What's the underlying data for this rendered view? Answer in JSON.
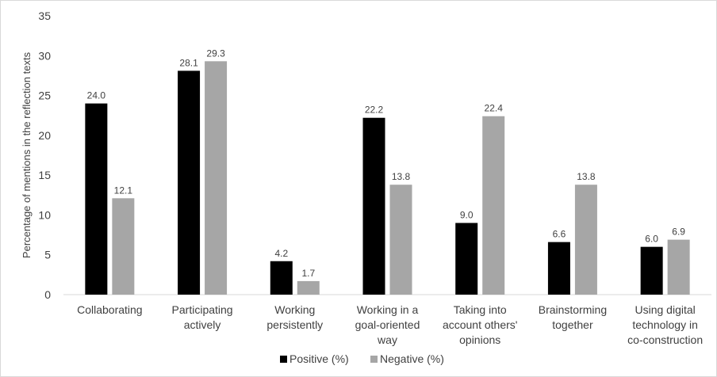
{
  "chart_data": {
    "type": "bar",
    "title": "",
    "xlabel": "",
    "ylabel": "Percentage of mentions in the reflection texts",
    "ylim": [
      0,
      35
    ],
    "yticks": [
      0,
      5,
      10,
      15,
      20,
      25,
      30,
      35
    ],
    "grid": false,
    "legend_position": "bottom",
    "categories": [
      [
        "Collaborating"
      ],
      [
        "Participating",
        "actively"
      ],
      [
        "Working",
        "persistently"
      ],
      [
        "Working in a",
        "goal-oriented",
        "way"
      ],
      [
        "Taking into",
        "account others'",
        "opinions"
      ],
      [
        "Brainstorming",
        "together"
      ],
      [
        "Using digital",
        "technology in",
        "co-construction"
      ]
    ],
    "series": [
      {
        "name": "Positive (%)",
        "color": "#000000",
        "values": [
          24.0,
          28.1,
          4.2,
          22.2,
          9.0,
          6.6,
          6.0
        ]
      },
      {
        "name": "Negative (%)",
        "color": "#a6a6a6",
        "values": [
          12.1,
          29.3,
          1.7,
          13.8,
          22.4,
          13.8,
          6.9
        ]
      }
    ]
  }
}
